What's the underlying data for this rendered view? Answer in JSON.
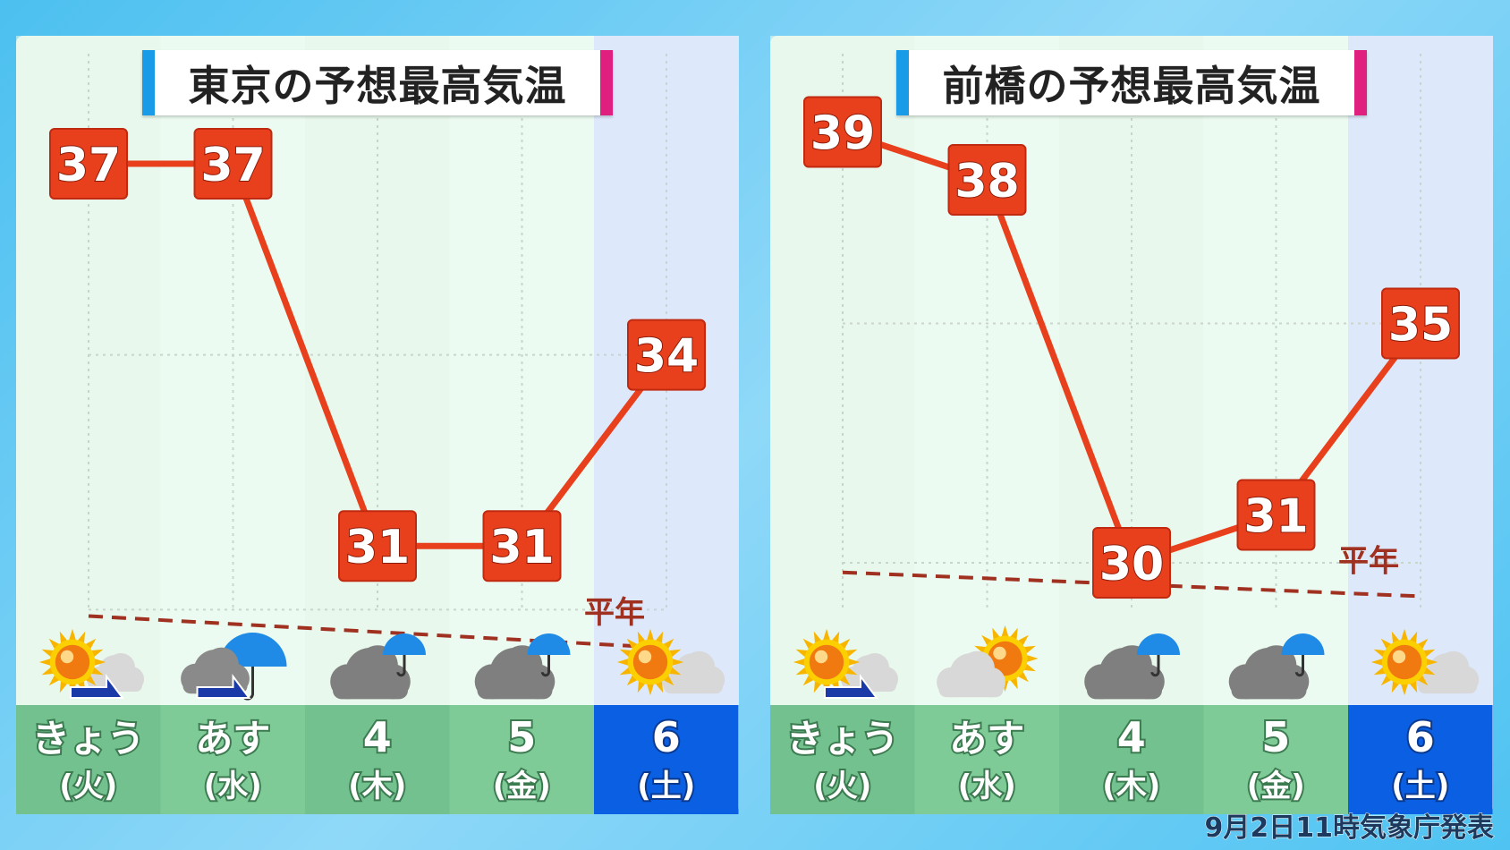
{
  "colors": {
    "line": "#e8401c",
    "box": "#e8401c",
    "normal": "#a03020",
    "day_bg": "#72c18f",
    "sat_bg": "#0b5fe3",
    "chart_bg": "#eafaef",
    "sat_chart_bg": "#dde9fb"
  },
  "footer": {
    "issued": "9月2日11時気象庁発表"
  },
  "chart_data": [
    {
      "type": "line",
      "title": "東京の予想最高気温",
      "categories": [
        "きょう",
        "あす",
        "4",
        "5",
        "6"
      ],
      "weekdays": [
        "(火)",
        "(水)",
        "(木)",
        "(金)",
        "(土)"
      ],
      "values": [
        37,
        37,
        31,
        31,
        34
      ],
      "normal": {
        "label": "平年",
        "values": [
          29.9,
          29.4
        ]
      },
      "ylim": [
        28,
        38
      ],
      "weather_icons": [
        "sun-then-cloud-icon",
        "cloud-then-rain-icon",
        "cloud-rain-icon",
        "cloud-rain-icon",
        "sun-cloud-icon"
      ],
      "grid": true
    },
    {
      "type": "line",
      "title": "前橋の予想最高気温",
      "categories": [
        "きょう",
        "あす",
        "4",
        "5",
        "6"
      ],
      "weekdays": [
        "(火)",
        "(水)",
        "(木)",
        "(金)",
        "(土)"
      ],
      "values": [
        39,
        38,
        30,
        31,
        35
      ],
      "normal": {
        "label": "平年",
        "values": [
          29.8,
          29.3
        ]
      },
      "ylim": [
        28,
        40
      ],
      "weather_icons": [
        "sun-then-cloud-icon",
        "cloud-sun-icon",
        "cloud-rain-icon",
        "cloud-rain-icon",
        "sun-cloud-icon"
      ],
      "grid": true
    }
  ]
}
